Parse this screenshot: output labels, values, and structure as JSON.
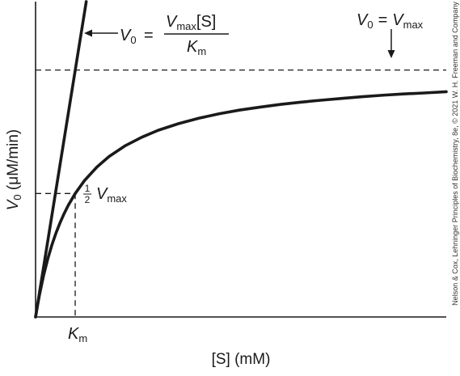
{
  "chart_data": {
    "type": "line",
    "title": "",
    "xlabel": "[S] (mM)",
    "ylabel_symbol": "V",
    "ylabel_subscript": "0",
    "ylabel_unit": " (μM/min)",
    "xlim": [
      0,
      10.05
    ],
    "ylim": [
      0,
      1.277
    ],
    "grid": false,
    "legend": "none",
    "km": 0.97,
    "vmax": 1.0,
    "series": [
      {
        "role": "michaelis-menten",
        "x": [
          0,
          0.05,
          0.1,
          0.2,
          0.3,
          0.4,
          0.5,
          0.6,
          0.7,
          0.8,
          0.97,
          1.2,
          1.5,
          1.8,
          2.2,
          2.6,
          3.0,
          3.5,
          4.0,
          4.5,
          5.0,
          5.5,
          6.0,
          6.5,
          7.0,
          7.5,
          8.0,
          8.5,
          9.0,
          9.5,
          10.05
        ],
        "y": [
          0,
          0.049,
          0.093,
          0.171,
          0.236,
          0.292,
          0.34,
          0.382,
          0.419,
          0.452,
          0.5,
          0.553,
          0.607,
          0.65,
          0.694,
          0.728,
          0.756,
          0.783,
          0.805,
          0.823,
          0.838,
          0.85,
          0.861,
          0.87,
          0.878,
          0.885,
          0.892,
          0.898,
          0.903,
          0.907,
          0.912
        ]
      },
      {
        "role": "initial-slope-asymptote",
        "x": [
          0,
          1.24
        ],
        "y": [
          0,
          1.277
        ]
      }
    ],
    "reference_lines": {
      "vmax_line": {
        "y": 1.0
      },
      "half_vmax_line": {
        "y": 0.5,
        "x_end": 0.97
      },
      "km_line": {
        "x": 0.97,
        "y_end": 0.5
      }
    },
    "annotations": {
      "linear_eq": {
        "lhs_symbol": "V",
        "lhs_sub": "0",
        "equals": "=",
        "num_symbol": "V",
        "num_sub": "max",
        "num_rest": "[S]",
        "den_symbol": "K",
        "den_sub": "m"
      },
      "vmax_eq": {
        "lhs_symbol": "V",
        "lhs_sub": "0",
        "equals": "=",
        "rhs_symbol": "V",
        "rhs_sub": "max"
      },
      "half_vmax": {
        "frac_num": "1",
        "frac_den": "2",
        "symbol": "V",
        "sub": "max"
      },
      "km_label": {
        "symbol": "K",
        "sub": "m"
      }
    },
    "credit": "Nelson & Cox, Lehninger Principles of Biochemistry, 8e, © 2021 W. H. Freeman and Company"
  },
  "colors": {
    "ink": "#1a1a1a",
    "background": "#ffffff"
  }
}
